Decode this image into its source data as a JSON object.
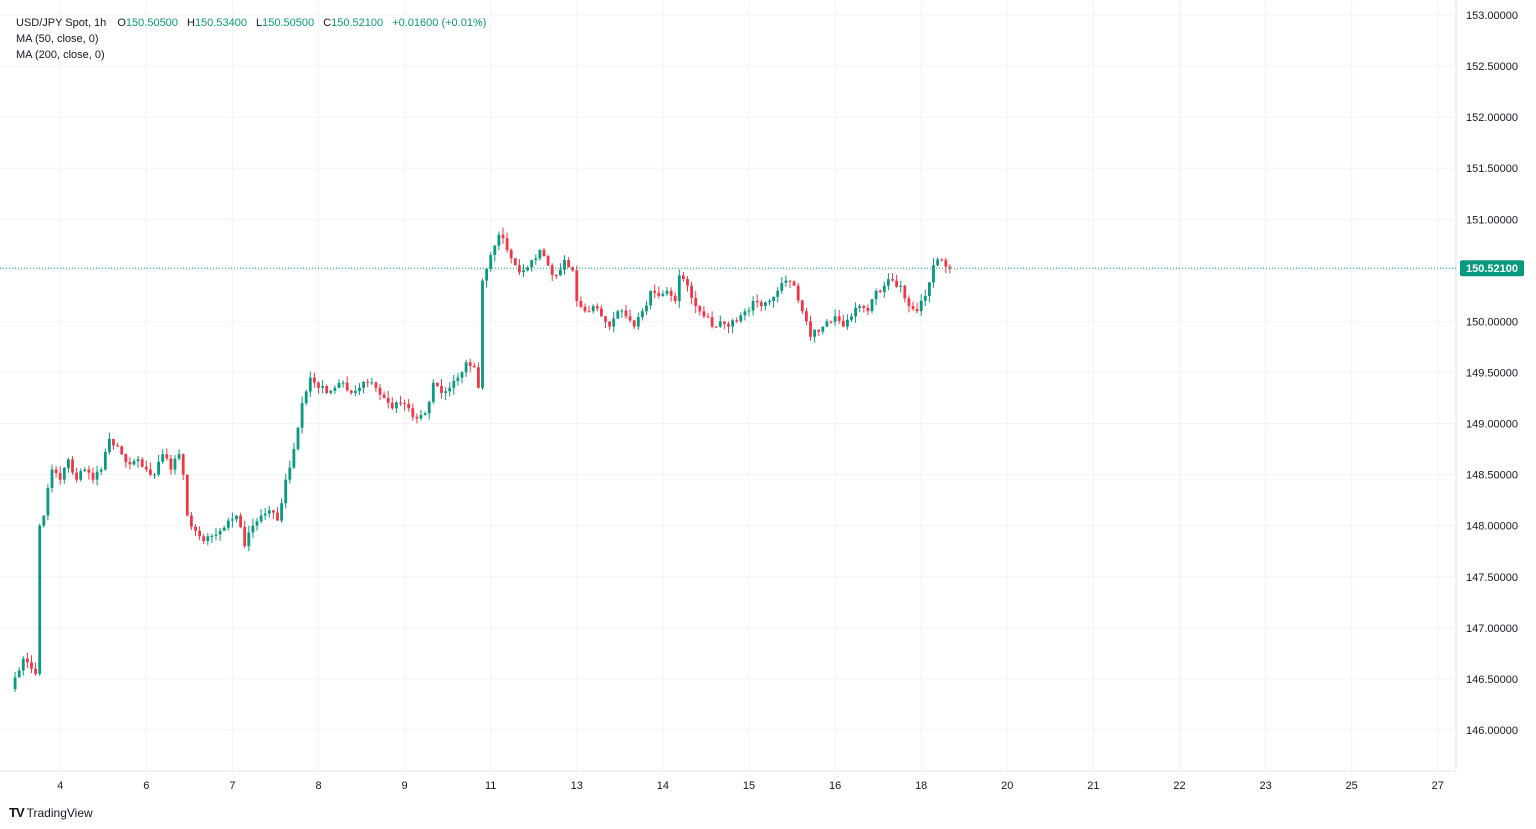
{
  "legend": {
    "symbol": "USD/JPY Spot, 1h",
    "o_label": "O",
    "o_value": "150.50500",
    "h_label": "H",
    "h_value": "150.53400",
    "l_label": "L",
    "l_value": "150.50500",
    "c_label": "C",
    "c_value": "150.52100",
    "change": "+0.01600 (+0.01%)",
    "ma50": "MA (50, close, 0)",
    "ma200": "MA (200, close, 0)"
  },
  "last_price_label": "150.52100",
  "brand": {
    "logo": "TV",
    "name": "TradingView"
  },
  "colors": {
    "up": "#089981",
    "down": "#f23645",
    "grid": "#f0f3fa",
    "axis_text": "#131722",
    "price_line": "#089981"
  },
  "chart_data": {
    "type": "candlestick",
    "title": "USD/JPY Spot, 1h",
    "ylim": [
      145.6,
      153.1
    ],
    "y_ticks": [
      146.0,
      146.5,
      147.0,
      147.5,
      148.0,
      148.5,
      149.0,
      149.5,
      150.0,
      150.5,
      151.0,
      151.5,
      152.0,
      152.5,
      153.0
    ],
    "y_tick_labels": [
      "146.00000",
      "146.50000",
      "147.00000",
      "147.50000",
      "148.00000",
      "148.50000",
      "149.00000",
      "149.50000",
      "150.00000",
      "150.50000",
      "151.00000",
      "151.50000",
      "152.00000",
      "152.50000",
      "153.00000"
    ],
    "x_tick_labels": [
      "4",
      "6",
      "7",
      "8",
      "9",
      "11",
      "13",
      "14",
      "15",
      "16",
      "18",
      "20",
      "21",
      "22",
      "23",
      "25",
      "27"
    ],
    "x_tick_candle_index": [
      12,
      33,
      54,
      75,
      96,
      117,
      138,
      159,
      180,
      201,
      222,
      243,
      264,
      285,
      306,
      327,
      348
    ],
    "last_price": 150.521,
    "grid": true,
    "anchors": [
      [
        0,
        146.4
      ],
      [
        3,
        146.7
      ],
      [
        5,
        146.6
      ],
      [
        6,
        146.55
      ],
      [
        7,
        148.0
      ],
      [
        8,
        148.1
      ],
      [
        10,
        148.55
      ],
      [
        12,
        148.45
      ],
      [
        14,
        148.65
      ],
      [
        16,
        148.45
      ],
      [
        18,
        148.55
      ],
      [
        20,
        148.45
      ],
      [
        22,
        148.55
      ],
      [
        24,
        148.85
      ],
      [
        27,
        148.7
      ],
      [
        29,
        148.6
      ],
      [
        31,
        148.65
      ],
      [
        33,
        148.55
      ],
      [
        35,
        148.5
      ],
      [
        37,
        148.7
      ],
      [
        39,
        148.55
      ],
      [
        41,
        148.7
      ],
      [
        42,
        148.5
      ],
      [
        43,
        148.1
      ],
      [
        45,
        147.95
      ],
      [
        47,
        147.85
      ],
      [
        49,
        147.9
      ],
      [
        51,
        147.95
      ],
      [
        53,
        148.05
      ],
      [
        55,
        148.1
      ],
      [
        57,
        147.8
      ],
      [
        59,
        148.0
      ],
      [
        61,
        148.1
      ],
      [
        63,
        148.15
      ],
      [
        65,
        148.05
      ],
      [
        67,
        148.45
      ],
      [
        69,
        148.75
      ],
      [
        71,
        149.2
      ],
      [
        73,
        149.45
      ],
      [
        75,
        149.35
      ],
      [
        77,
        149.3
      ],
      [
        79,
        149.35
      ],
      [
        81,
        149.4
      ],
      [
        83,
        149.3
      ],
      [
        85,
        149.35
      ],
      [
        87,
        149.4
      ],
      [
        89,
        149.35
      ],
      [
        91,
        149.25
      ],
      [
        93,
        149.15
      ],
      [
        95,
        149.2
      ],
      [
        97,
        149.15
      ],
      [
        99,
        149.05
      ],
      [
        101,
        149.1
      ],
      [
        103,
        149.4
      ],
      [
        105,
        149.3
      ],
      [
        107,
        149.35
      ],
      [
        109,
        149.45
      ],
      [
        111,
        149.6
      ],
      [
        113,
        149.55
      ],
      [
        114,
        149.35
      ],
      [
        115,
        150.4
      ],
      [
        117,
        150.65
      ],
      [
        119,
        150.85
      ],
      [
        121,
        150.7
      ],
      [
        123,
        150.55
      ],
      [
        125,
        150.5
      ],
      [
        127,
        150.6
      ],
      [
        129,
        150.7
      ],
      [
        131,
        150.55
      ],
      [
        133,
        150.45
      ],
      [
        135,
        150.6
      ],
      [
        137,
        150.5
      ],
      [
        138,
        150.2
      ],
      [
        140,
        150.1
      ],
      [
        142,
        150.15
      ],
      [
        144,
        150.05
      ],
      [
        146,
        149.95
      ],
      [
        148,
        150.1
      ],
      [
        150,
        150.05
      ],
      [
        152,
        149.95
      ],
      [
        154,
        150.1
      ],
      [
        156,
        150.3
      ],
      [
        158,
        150.25
      ],
      [
        160,
        150.3
      ],
      [
        162,
        150.2
      ],
      [
        163,
        150.45
      ],
      [
        165,
        150.35
      ],
      [
        167,
        150.15
      ],
      [
        169,
        150.05
      ],
      [
        171,
        149.95
      ],
      [
        173,
        150.0
      ],
      [
        175,
        149.95
      ],
      [
        177,
        150.0
      ],
      [
        179,
        150.1
      ],
      [
        181,
        150.2
      ],
      [
        183,
        150.15
      ],
      [
        185,
        150.2
      ],
      [
        187,
        150.3
      ],
      [
        189,
        150.4
      ],
      [
        191,
        150.35
      ],
      [
        193,
        150.1
      ],
      [
        195,
        149.85
      ],
      [
        197,
        149.9
      ],
      [
        199,
        150.0
      ],
      [
        201,
        150.05
      ],
      [
        203,
        149.95
      ],
      [
        205,
        150.05
      ],
      [
        207,
        150.15
      ],
      [
        209,
        150.1
      ],
      [
        211,
        150.3
      ],
      [
        213,
        150.35
      ],
      [
        215,
        150.4
      ],
      [
        217,
        150.35
      ],
      [
        219,
        150.15
      ],
      [
        221,
        150.1
      ],
      [
        223,
        150.25
      ],
      [
        225,
        150.55
      ],
      [
        227,
        150.6
      ],
      [
        229,
        150.52
      ]
    ]
  }
}
